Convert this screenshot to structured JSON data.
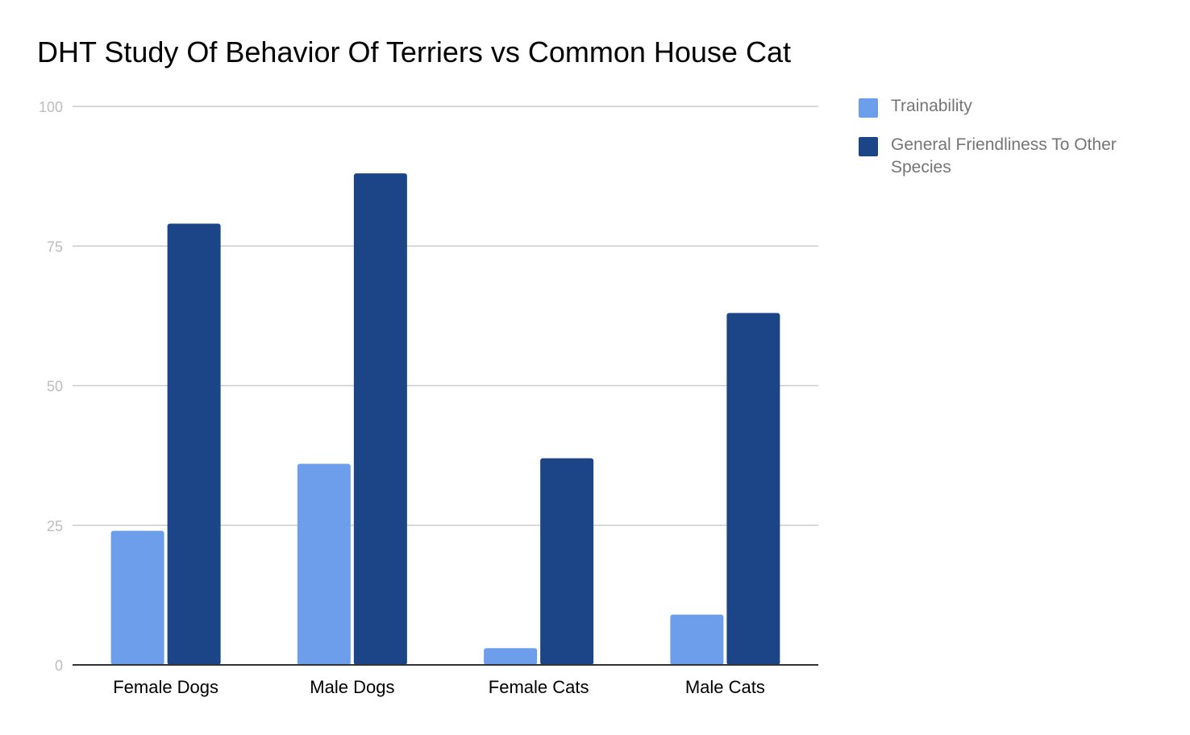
{
  "chart_data": {
    "type": "bar",
    "title": "DHT Study Of Behavior Of Terriers vs Common House Cat",
    "categories": [
      "Female Dogs",
      "Male Dogs",
      "Female Cats",
      "Male Cats"
    ],
    "series": [
      {
        "name": "Trainability",
        "values": [
          24,
          36,
          3,
          9
        ],
        "color": "#6d9eeb"
      },
      {
        "name": "General Friendliness To Other Species",
        "values": [
          79,
          88,
          37,
          63
        ],
        "color": "#1c4587"
      }
    ],
    "yticks": [
      "0",
      "25",
      "50",
      "75",
      "100"
    ],
    "ylim": [
      0,
      100
    ],
    "grid": true,
    "legend_position": "right"
  }
}
